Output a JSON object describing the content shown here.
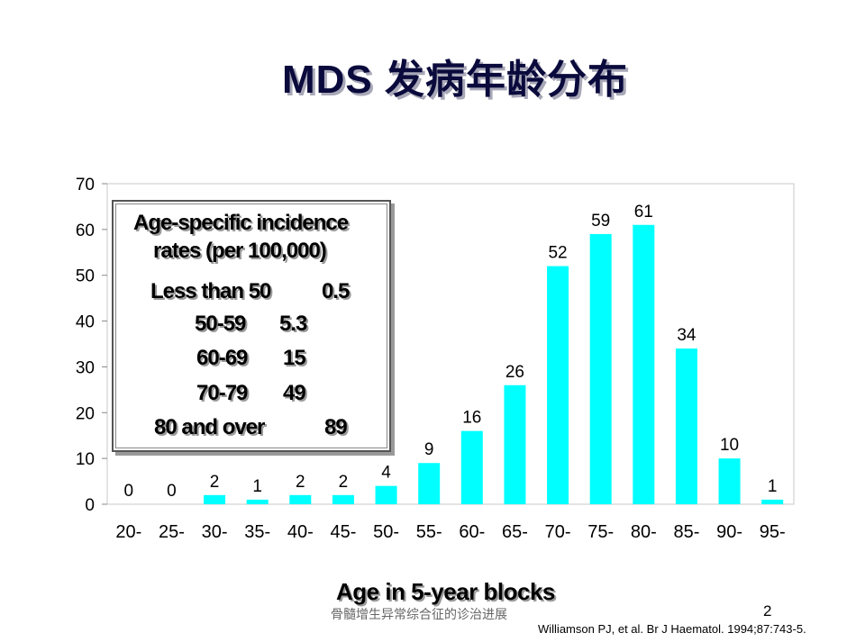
{
  "slide": {
    "title": "MDS 发病年龄分布",
    "footer_text": "骨髓增生异常综合征的诊治进展",
    "page_number": "2",
    "citation": "Williamson PJ, et al. Br J Haematol. 1994;87:743-5."
  },
  "legend_box": {
    "heading_line1": "Age-specific incidence",
    "heading_line2": "rates (per 100,000)",
    "rows": [
      {
        "age": "Less than 50",
        "rate": "0.5"
      },
      {
        "age": "50-59",
        "rate": "5.3"
      },
      {
        "age": "60-69",
        "rate": "15"
      },
      {
        "age": "70-79",
        "rate": "49"
      },
      {
        "age": "80 and over",
        "rate": "89"
      }
    ]
  },
  "chart_data": {
    "type": "bar",
    "categories": [
      "20-",
      "25-",
      "30-",
      "35-",
      "40-",
      "45-",
      "50-",
      "55-",
      "60-",
      "65-",
      "70-",
      "75-",
      "80-",
      "85-",
      "90-",
      "95-"
    ],
    "values": [
      0,
      0,
      2,
      1,
      2,
      2,
      4,
      9,
      16,
      26,
      52,
      59,
      61,
      34,
      10,
      1
    ],
    "xlabel": "Age in 5-year blocks",
    "ylabel": "",
    "ylim": [
      0,
      70
    ],
    "yticks": [
      0,
      10,
      20,
      30,
      40,
      50,
      60,
      70
    ],
    "bar_color": "#00ffff",
    "grid": false,
    "data_labels": true
  }
}
